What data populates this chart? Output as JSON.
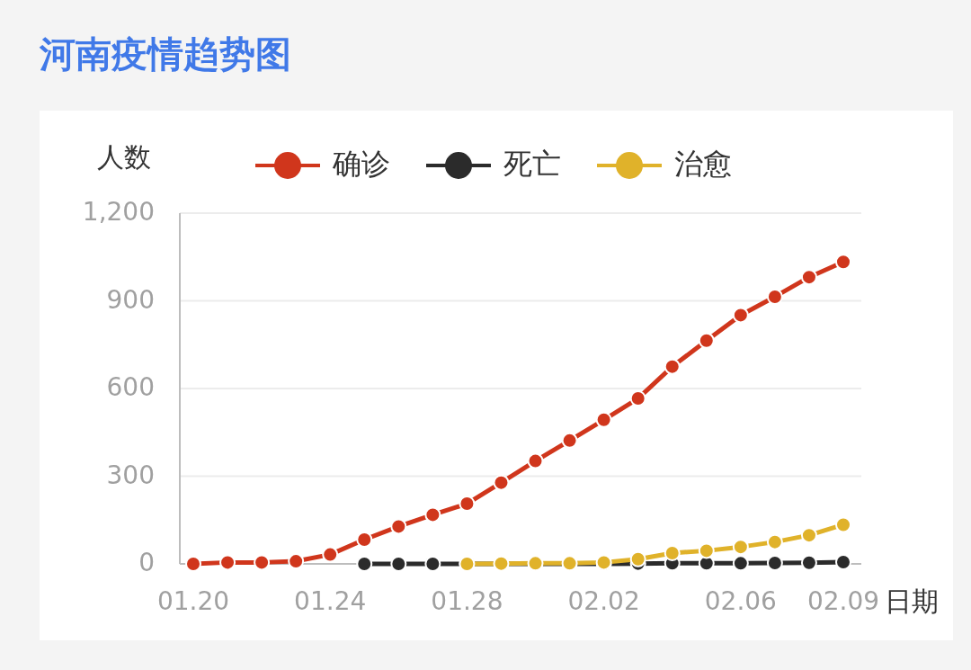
{
  "chart_data": {
    "type": "line",
    "title": "河南疫情趋势图",
    "ylabel": "人数",
    "xlabel": "日期",
    "categories": [
      "01.20",
      null,
      null,
      null,
      "01.24",
      null,
      null,
      null,
      "01.28",
      null,
      null,
      null,
      "02.02",
      null,
      null,
      null,
      "02.06",
      null,
      null,
      "02.09"
    ],
    "series": [
      {
        "name": "确诊",
        "color": "#d0361c",
        "values": [
          0,
          5,
          5,
          9,
          32,
          83,
          128,
          168,
          206,
          278,
          352,
          422,
          493,
          566,
          675,
          764,
          851,
          914,
          981,
          1033
        ]
      },
      {
        "name": "死亡",
        "color": "#2b2b2b",
        "values": [
          null,
          null,
          null,
          null,
          null,
          0,
          0,
          0,
          0,
          0,
          0,
          0,
          0,
          1,
          2,
          2,
          2,
          3,
          4,
          6
        ]
      },
      {
        "name": "治愈",
        "color": "#e0b22a",
        "values": [
          null,
          null,
          null,
          null,
          null,
          null,
          null,
          null,
          0,
          1,
          2,
          2,
          5,
          16,
          37,
          45,
          58,
          75,
          98,
          134
        ]
      }
    ],
    "ylim": [
      0,
      1200
    ],
    "yticks": [
      0,
      300,
      600,
      900,
      {
        "value": 1200,
        "label": "1,200"
      }
    ],
    "grid": "y",
    "legend": "top",
    "marker": "circle",
    "line_style": "solid"
  }
}
